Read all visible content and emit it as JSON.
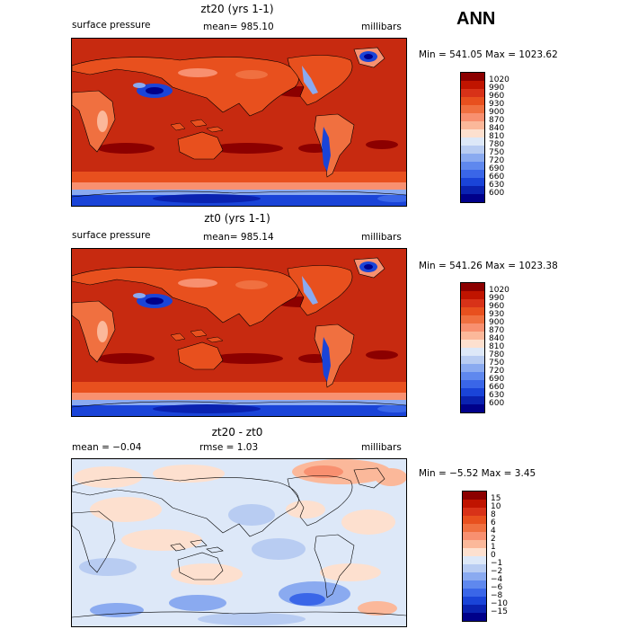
{
  "header": {
    "season": "ANN"
  },
  "panels": [
    {
      "title": "zt20 (yrs 1-1)",
      "left_text": "surface pressure",
      "center_text": "mean= 985.10",
      "right_text": "millibars",
      "stats": "Min = 541.05 Max = 1023.62",
      "legend": {
        "labels": [
          "1020",
          "990",
          "960",
          "930",
          "900",
          "870",
          "840",
          "810",
          "780",
          "750",
          "720",
          "690",
          "660",
          "630",
          "600"
        ],
        "colors": [
          "#8c0000",
          "#c01400",
          "#d83218",
          "#e8501e",
          "#f07040",
          "#f89070",
          "#fbb89a",
          "#fde0cf",
          "#dde8f8",
          "#b8ccf2",
          "#8aaaf0",
          "#5f88ee",
          "#3a66e8",
          "#1a44d8",
          "#0a22b0",
          "#00008a"
        ]
      }
    },
    {
      "title": "zt0 (yrs 1-1)",
      "left_text": "surface pressure",
      "center_text": "mean= 985.14",
      "right_text": "millibars",
      "stats": "Min = 541.26 Max = 1023.38",
      "legend": {
        "labels": [
          "1020",
          "990",
          "960",
          "930",
          "900",
          "870",
          "840",
          "810",
          "780",
          "750",
          "720",
          "690",
          "660",
          "630",
          "600"
        ],
        "colors": [
          "#8c0000",
          "#c01400",
          "#d83218",
          "#e8501e",
          "#f07040",
          "#f89070",
          "#fbb89a",
          "#fde0cf",
          "#dde8f8",
          "#b8ccf2",
          "#8aaaf0",
          "#5f88ee",
          "#3a66e8",
          "#1a44d8",
          "#0a22b0",
          "#00008a"
        ]
      }
    },
    {
      "title": "zt20 - zt0",
      "left_text": "mean = −0.04",
      "center_text": "rmse =   1.03",
      "right_text": "millibars",
      "stats": "Min = −5.52 Max =   3.45",
      "legend": {
        "labels": [
          "15",
          "10",
          "8",
          "6",
          "4",
          "2",
          "1",
          "0",
          "−1",
          "−2",
          "−4",
          "−6",
          "−8",
          "−10",
          "−15"
        ],
        "colors": [
          "#8c0000",
          "#c01400",
          "#d83218",
          "#e8501e",
          "#f07040",
          "#f89070",
          "#fbb89a",
          "#fde0cf",
          "#dde8f8",
          "#b8ccf2",
          "#8aaaf0",
          "#5f88ee",
          "#3a66e8",
          "#1a44d8",
          "#0a22b0",
          "#00008a"
        ]
      }
    }
  ]
}
